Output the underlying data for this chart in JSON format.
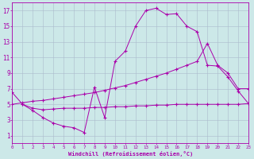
{
  "xlabel": "Windchill (Refroidissement éolien,°C)",
  "xlim": [
    0,
    23
  ],
  "ylim": [
    0,
    18
  ],
  "xticks": [
    0,
    1,
    2,
    3,
    4,
    5,
    6,
    7,
    8,
    9,
    10,
    11,
    12,
    13,
    14,
    15,
    16,
    17,
    18,
    19,
    20,
    21,
    22,
    23
  ],
  "yticks": [
    1,
    3,
    5,
    7,
    9,
    11,
    13,
    15,
    17
  ],
  "bg_color": "#cce8e8",
  "grid_color": "#aabbcc",
  "line_color": "#aa00aa",
  "line1_x": [
    0,
    1,
    2,
    3,
    4,
    5,
    6,
    7,
    8,
    9,
    10,
    11,
    12,
    13,
    14,
    15,
    16,
    17,
    18,
    19,
    20,
    21,
    22,
    23
  ],
  "line1_y": [
    6.5,
    5.0,
    4.2,
    3.3,
    2.6,
    2.2,
    2.0,
    1.4,
    7.2,
    3.3,
    10.5,
    11.8,
    15.0,
    17.0,
    17.3,
    16.5,
    16.6,
    15.0,
    14.3,
    10.0,
    9.9,
    8.5,
    6.7,
    5.1
  ],
  "line2_x": [
    1,
    2,
    3,
    4,
    5,
    6,
    7,
    8,
    9,
    10,
    11,
    12,
    13,
    14,
    15,
    16,
    17,
    18,
    19,
    20,
    21,
    22,
    23
  ],
  "line2_y": [
    5.0,
    4.5,
    4.3,
    4.4,
    4.5,
    4.5,
    4.5,
    4.6,
    4.6,
    4.7,
    4.7,
    4.8,
    4.8,
    4.9,
    4.9,
    5.0,
    5.0,
    5.0,
    5.0,
    5.0,
    5.0,
    5.0,
    5.1
  ],
  "line3_x": [
    0,
    1,
    2,
    3,
    4,
    5,
    6,
    7,
    8,
    9,
    10,
    11,
    12,
    13,
    14,
    15,
    16,
    17,
    18,
    19,
    20,
    21,
    22,
    23
  ],
  "line3_y": [
    5.0,
    5.2,
    5.4,
    5.5,
    5.7,
    5.9,
    6.1,
    6.3,
    6.5,
    6.8,
    7.1,
    7.4,
    7.8,
    8.2,
    8.6,
    9.0,
    9.5,
    10.0,
    10.5,
    12.8,
    10.0,
    9.0,
    7.0,
    7.0
  ]
}
